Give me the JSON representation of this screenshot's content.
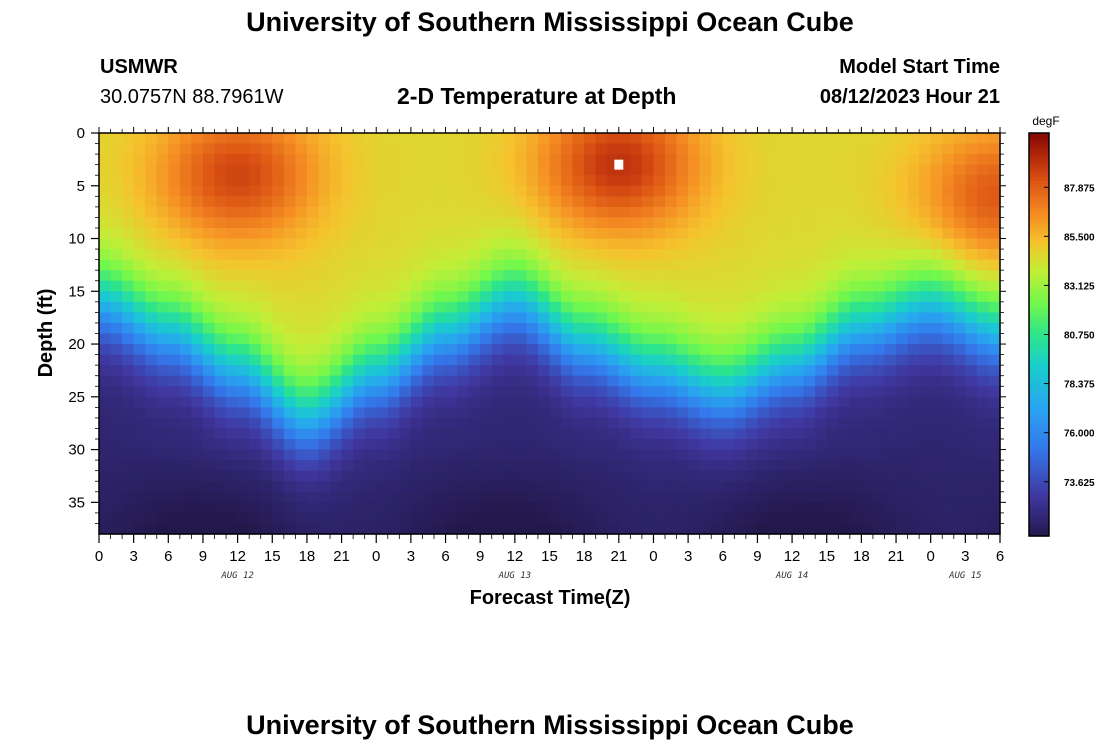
{
  "page": {
    "title": "University of Southern Mississippi Ocean Cube",
    "footer_title": "University of Southern Mississippi Ocean Cube",
    "station": "USMWR",
    "coordinates": "30.0757N  88.7961W",
    "model_label": "Model Start Time",
    "model_time": "08/12/2023 Hour 21"
  },
  "chart_data": {
    "type": "heatmap",
    "title": "2-D Temperature at Depth",
    "xlabel": "Forecast Time(Z)",
    "ylabel": "Depth (ft)",
    "x_tick_labels": [
      "0",
      "3",
      "6",
      "9",
      "12",
      "15",
      "18",
      "21",
      "0",
      "3",
      "6",
      "9",
      "12",
      "15",
      "18",
      "21",
      "0",
      "3",
      "6",
      "9",
      "12",
      "15",
      "18",
      "21",
      "0",
      "3",
      "6"
    ],
    "x_range_hours": [
      0,
      78
    ],
    "x_tick_step_hours": 3,
    "date_labels": [
      {
        "label": "AUG 12",
        "hour": 12
      },
      {
        "label": "AUG 13",
        "hour": 36
      },
      {
        "label": "AUG 14",
        "hour": 60
      },
      {
        "label": "AUG 15",
        "hour": 75
      }
    ],
    "y_ticks": [
      0,
      5,
      10,
      15,
      20,
      25,
      30,
      35
    ],
    "y_range_ft": [
      0,
      38
    ],
    "y_inverted": true,
    "colorbar": {
      "unit": "degF",
      "range": [
        71.0,
        90.5
      ],
      "tick_values": [
        73.625,
        76.0,
        78.375,
        80.75,
        83.125,
        85.5,
        87.875
      ],
      "tick_labels": [
        "73.625",
        "76.000",
        "78.375",
        "80.750",
        "83.125",
        "85.500",
        "87.875"
      ]
    },
    "thermocline_depth_ft": [
      {
        "hour": 0,
        "depth": 16
      },
      {
        "hour": 6,
        "depth": 19
      },
      {
        "hour": 12,
        "depth": 22.5
      },
      {
        "hour": 18,
        "depth": 27
      },
      {
        "hour": 24,
        "depth": 23
      },
      {
        "hour": 30,
        "depth": 19
      },
      {
        "hour": 36,
        "depth": 16
      },
      {
        "hour": 42,
        "depth": 20
      },
      {
        "hour": 48,
        "depth": 22.5
      },
      {
        "hour": 54,
        "depth": 24.5
      },
      {
        "hour": 60,
        "depth": 22
      },
      {
        "hour": 66,
        "depth": 18.5
      },
      {
        "hour": 72,
        "depth": 16.5
      },
      {
        "hour": 78,
        "depth": 19
      }
    ],
    "surface_warm_cores": [
      {
        "hour": 12,
        "depth": 4,
        "tempF": 89.5
      },
      {
        "hour": 45,
        "depth": 3,
        "tempF": 90.0
      },
      {
        "hour": 78,
        "depth": 6,
        "tempF": 89.0
      }
    ],
    "marker": {
      "hour": 45,
      "depth": 3
    }
  }
}
